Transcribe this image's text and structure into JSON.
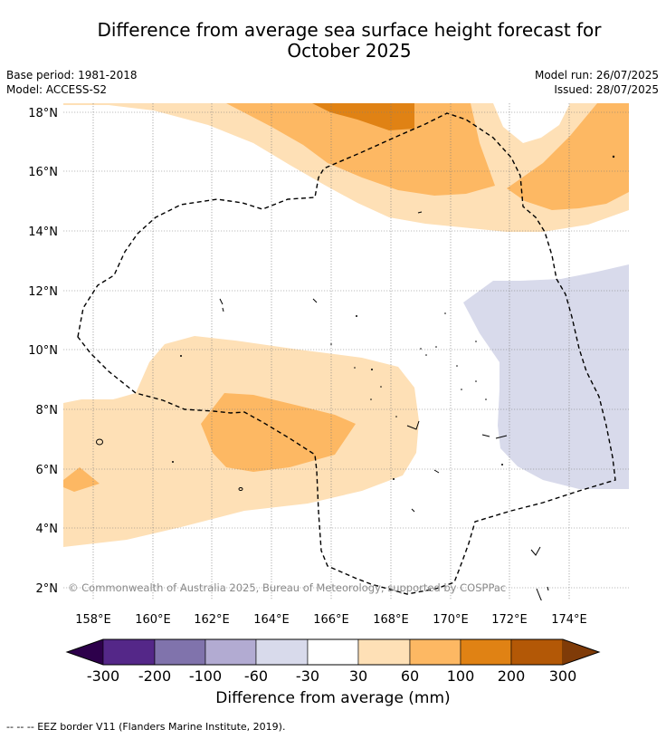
{
  "title_line1": "Difference from average sea surface height forecast for",
  "title_line2": "October 2025",
  "meta_left": [
    "Base period: 1981-2018",
    "Model: ACCESS-S2"
  ],
  "meta_right": [
    "Model run: 26/07/2025",
    "Issued: 28/07/2025"
  ],
  "copyright": "© Commonwealth of Australia 2025, Bureau of Meteorology, supported by COSPPac",
  "axes": {
    "lat_ticks": [
      "18°N",
      "16°N",
      "14°N",
      "12°N",
      "10°N",
      "8°N",
      "6°N",
      "4°N",
      "2°N"
    ],
    "lon_ticks": [
      "158°E",
      "160°E",
      "162°E",
      "164°E",
      "166°E",
      "168°E",
      "170°E",
      "172°E",
      "174°E"
    ]
  },
  "colorbar": {
    "label": "Difference from average (mm)",
    "ticks": [
      "-300",
      "-200",
      "-100",
      "-60",
      "-30",
      "30",
      "60",
      "100",
      "200",
      "300"
    ],
    "colors": [
      "#2d004b",
      "#542788",
      "#8073ac",
      "#b2abd2",
      "#d8daeb",
      "#ffffff",
      "#fee0b6",
      "#fdb863",
      "#e08214",
      "#b35806",
      "#7f3b08"
    ]
  },
  "footer": "--  --  -- EEZ border V11 (Flanders Marine Institute, 2019)."
}
